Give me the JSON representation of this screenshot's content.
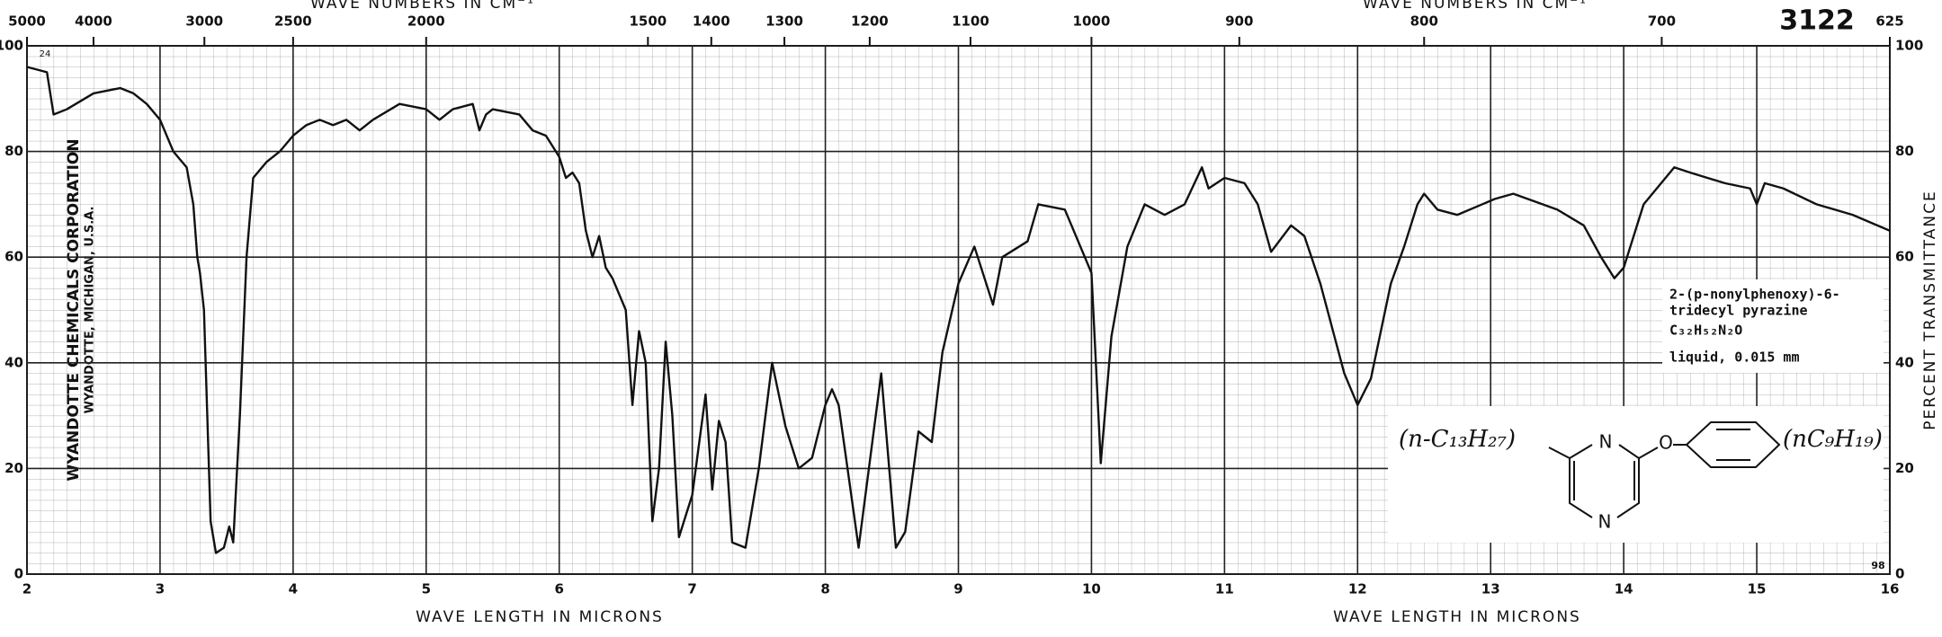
{
  "chart_data": {
    "type": "line",
    "catalog_number": "3122",
    "xlabel": "WAVE LENGTH IN MICRONS",
    "x2label": "WAVE NUMBERS IN CM⁻¹",
    "ylabel": "PERCENT TRANSMITTANCE",
    "side_text": [
      "WYANDOTTE CHEMICALS CORPORATION",
      "WYANDOTTE, MICHIGAN, U.S.A."
    ],
    "corner_marks": [
      "24",
      "98"
    ],
    "compound": {
      "name": [
        "2-(p-nonylphenoxy)-6-",
        "tridecyl pyrazine"
      ],
      "formula": "C₃₂H₅₂N₂O",
      "sample": "liquid, 0.015 mm",
      "structure": {
        "left_group": "(n-C₁₃H₂₇)",
        "right_group": "(nC₉H₁₉)",
        "atoms": [
          "N",
          "N",
          "O"
        ]
      }
    },
    "xlim": [
      2,
      16
    ],
    "xticks": [
      2,
      3,
      4,
      5,
      6,
      7,
      8,
      9,
      10,
      11,
      12,
      13,
      14,
      15,
      16
    ],
    "x2ticks": [
      5000,
      4000,
      3000,
      2500,
      2000,
      1500,
      1400,
      1300,
      1200,
      1100,
      1000,
      900,
      800,
      700,
      625
    ],
    "ylim": [
      0,
      100
    ],
    "yticks": [
      0,
      20,
      40,
      60,
      80,
      100
    ],
    "grid": true,
    "x": [
      2.0,
      2.15,
      2.2,
      2.3,
      2.5,
      2.7,
      2.8,
      2.9,
      3.0,
      3.1,
      3.2,
      3.25,
      3.28,
      3.3,
      3.33,
      3.38,
      3.42,
      3.48,
      3.52,
      3.55,
      3.6,
      3.65,
      3.7,
      3.8,
      3.9,
      4.0,
      4.1,
      4.2,
      4.3,
      4.4,
      4.5,
      4.6,
      4.8,
      5.0,
      5.1,
      5.2,
      5.35,
      5.4,
      5.45,
      5.5,
      5.7,
      5.8,
      5.9,
      6.0,
      6.05,
      6.1,
      6.15,
      6.2,
      6.25,
      6.3,
      6.35,
      6.4,
      6.5,
      6.55,
      6.6,
      6.65,
      6.7,
      6.75,
      6.8,
      6.85,
      6.9,
      7.0,
      7.1,
      7.15,
      7.2,
      7.25,
      7.3,
      7.4,
      7.5,
      7.6,
      7.7,
      7.8,
      7.9,
      8.0,
      8.05,
      8.1,
      8.25,
      8.42,
      8.53,
      8.6,
      8.7,
      8.8,
      8.88,
      9.0,
      9.12,
      9.26,
      9.33,
      9.52,
      9.6,
      9.8,
      10.0,
      10.07,
      10.15,
      10.27,
      10.4,
      10.55,
      10.7,
      10.83,
      10.88,
      11.0,
      11.15,
      11.25,
      11.35,
      11.5,
      11.6,
      11.72,
      11.9,
      12.0,
      12.1,
      12.25,
      12.35,
      12.45,
      12.5,
      12.6,
      12.75,
      13.03,
      13.17,
      13.5,
      13.7,
      13.83,
      13.93,
      14.0,
      14.15,
      14.38,
      14.5,
      14.76,
      14.95,
      15.0,
      15.06,
      15.2,
      15.45,
      15.72,
      16.0
    ],
    "series": [
      {
        "color": "#111111",
        "values": [
          96,
          95,
          87,
          88,
          91,
          92,
          91,
          89,
          86,
          80,
          77,
          70,
          60,
          57,
          50,
          10,
          4,
          5,
          9,
          6,
          30,
          60,
          75,
          78,
          80,
          83,
          85,
          86,
          85,
          86,
          84,
          86,
          89,
          88,
          86,
          88,
          89,
          84,
          87,
          88,
          87,
          84,
          83,
          79,
          75,
          76,
          74,
          65,
          60,
          64,
          58,
          56,
          50,
          32,
          46,
          40,
          10,
          20,
          44,
          30,
          7,
          15,
          34,
          16,
          29,
          25,
          6,
          5,
          20,
          40,
          28,
          20,
          22,
          32,
          35,
          32,
          5,
          38,
          5,
          8,
          27,
          25,
          42,
          55,
          62,
          51,
          60,
          63,
          70,
          69,
          57,
          21,
          45,
          62,
          70,
          68,
          70,
          77,
          73,
          75,
          74,
          70,
          61,
          66,
          64,
          55,
          38,
          32,
          37,
          55,
          62,
          70,
          72,
          69,
          68,
          71,
          72,
          69,
          66,
          60,
          56,
          58,
          70,
          77,
          76,
          74,
          73,
          70,
          74,
          73,
          70,
          68,
          65
        ]
      }
    ]
  }
}
